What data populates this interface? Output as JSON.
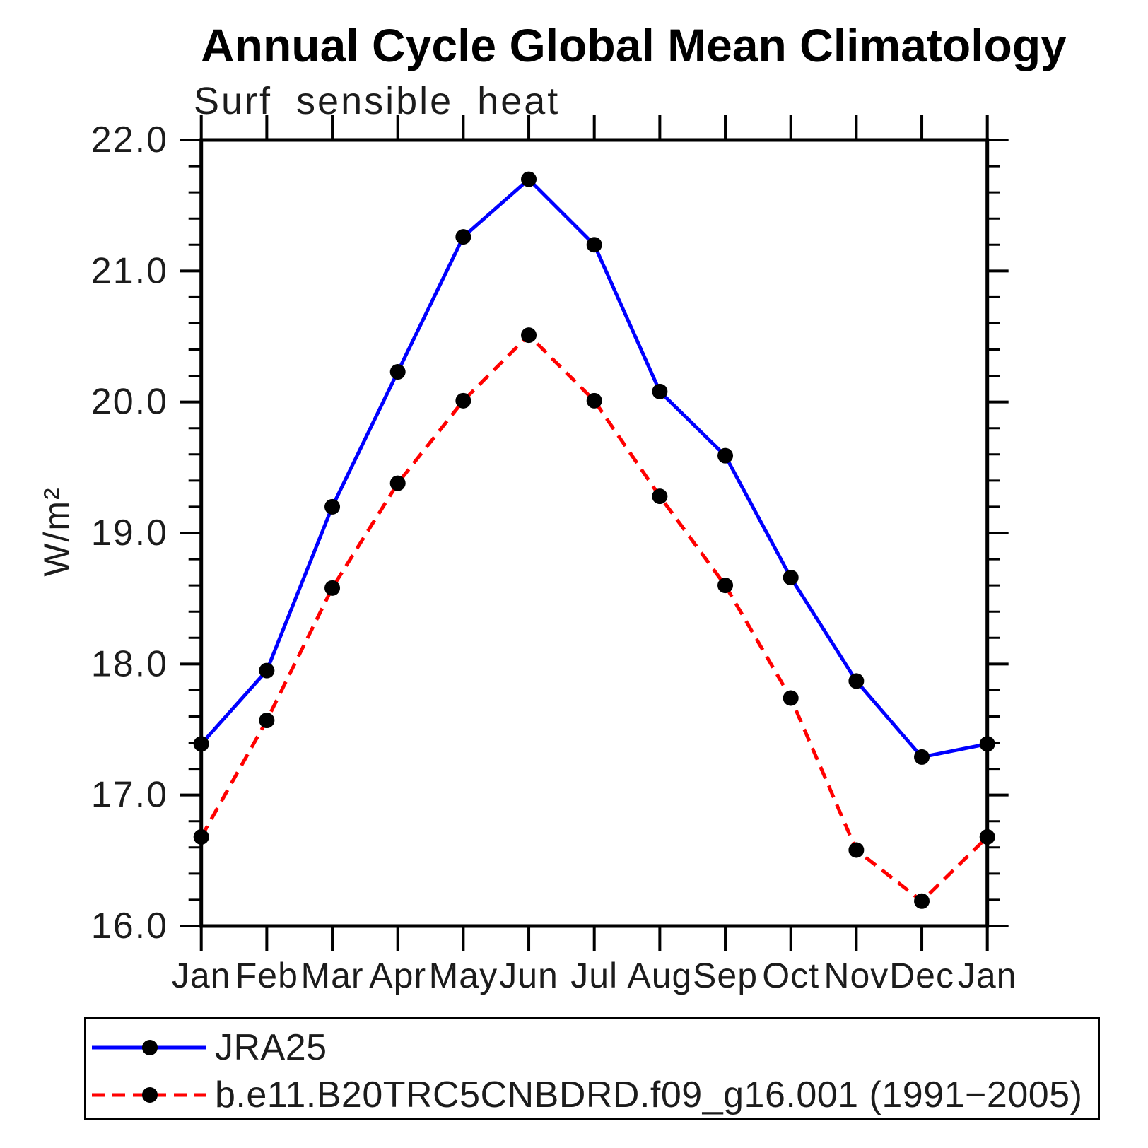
{
  "header": {
    "title": "Annual Cycle Global Mean Climatology",
    "subtitle": "Surf sensible heat"
  },
  "chart_data": {
    "type": "line",
    "title": "Annual Cycle Global Mean Climatology",
    "subtitle": "Surf sensible heat",
    "xlabel": "",
    "ylabel": "W/m²",
    "categories": [
      "Jan",
      "Feb",
      "Mar",
      "Apr",
      "May",
      "Jun",
      "Jul",
      "Aug",
      "Sep",
      "Oct",
      "Nov",
      "Dec",
      "Jan"
    ],
    "ylim": [
      16.0,
      22.0
    ],
    "ytick_major_interval": 1.0,
    "ytick_minor_interval": 0.2,
    "ytick_labels": [
      "16.0",
      "17.0",
      "18.0",
      "19.0",
      "20.0",
      "21.0",
      "22.0"
    ],
    "grid": false,
    "legend_position": "bottom",
    "axis_color": "#000000",
    "marker_color": "#000000",
    "series": [
      {
        "name": "JRA25",
        "color": "#0000ff",
        "style": "solid",
        "marker": "circle",
        "values": [
          17.39,
          17.95,
          19.2,
          20.23,
          21.26,
          21.7,
          21.2,
          20.08,
          19.59,
          18.66,
          17.87,
          17.29,
          17.39
        ]
      },
      {
        "name": "b.e11.B20TRC5CNBDRD.f09_g16.001 (1991−2005)",
        "color": "#ff0000",
        "style": "dashed",
        "marker": "circle",
        "values": [
          16.68,
          17.57,
          18.58,
          19.38,
          20.01,
          20.51,
          20.01,
          19.28,
          18.6,
          17.74,
          16.58,
          16.19,
          16.68
        ]
      }
    ]
  }
}
